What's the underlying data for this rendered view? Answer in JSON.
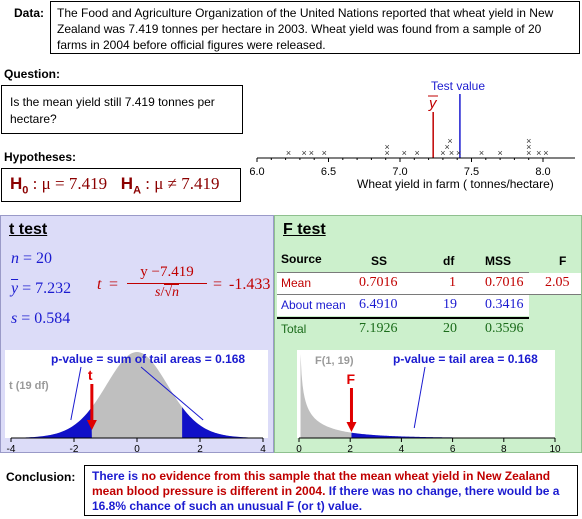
{
  "data_section": {
    "label": "Data:",
    "text": "The Food and Agriculture Organization of the United Nations reported that wheat yield in New Zealand was 7.419 tonnes per hectare in 2003. Wheat yield was found from a sample of 20 farms in 2004 before official figures were released."
  },
  "question_section": {
    "label": "Question:",
    "text": "Is the mean yield still 7.419 tonnes per hectare?"
  },
  "hypotheses_section": {
    "label": "Hypotheses:",
    "h0_sym": "H",
    "h0_sub": "0",
    "h0_rest": ": μ = 7.419",
    "ha_sym": "H",
    "ha_sub": "A",
    "ha_rest": ": μ ≠ 7.419"
  },
  "dotplot": {
    "test_value_label": "Test value",
    "ybar_label": "y",
    "axis_label": "Wheat yield in farm ( tonnes/hectare)",
    "ticks": [
      "6.0",
      "6.5",
      "7.0",
      "7.5",
      "8.0"
    ],
    "x_min": 6.0,
    "x_max": 8.0,
    "test_value": 7.419,
    "sample_mean": 7.232,
    "points": [
      {
        "x": 6.22,
        "level": 0
      },
      {
        "x": 6.33,
        "level": 0
      },
      {
        "x": 6.38,
        "level": 0
      },
      {
        "x": 6.47,
        "level": 0
      },
      {
        "x": 6.91,
        "level": 0
      },
      {
        "x": 6.91,
        "level": 1
      },
      {
        "x": 7.03,
        "level": 0
      },
      {
        "x": 7.12,
        "level": 0
      },
      {
        "x": 7.3,
        "level": 0
      },
      {
        "x": 7.33,
        "level": 1
      },
      {
        "x": 7.35,
        "level": 2
      },
      {
        "x": 7.36,
        "level": 0
      },
      {
        "x": 7.41,
        "level": 0
      },
      {
        "x": 7.57,
        "level": 0
      },
      {
        "x": 7.7,
        "level": 0
      },
      {
        "x": 7.9,
        "level": 0
      },
      {
        "x": 7.9,
        "level": 1
      },
      {
        "x": 7.9,
        "level": 2
      },
      {
        "x": 7.97,
        "level": 0
      },
      {
        "x": 8.02,
        "level": 0
      }
    ]
  },
  "t_test": {
    "title": "t test",
    "n_label": "n",
    "n_value": "= 20",
    "ybar_label": "y",
    "ybar_value": "= 7.232",
    "s_label": "s",
    "s_value": "= 0.584",
    "t_label": "t",
    "eq1": "=",
    "numerator": "y −7.419",
    "den_s": "s",
    "den_n": "n",
    "eq2": "=",
    "t_value": "-1.433",
    "pvalue_text": "p-value = sum of tail areas = 0.168",
    "dist_label": "t (19 df)",
    "marker_label": "t",
    "axis_ticks": [
      "-4",
      "-2",
      "0",
      "2",
      "4"
    ],
    "x_min": -4,
    "x_max": 4,
    "df": 19,
    "t_stat": -1.433
  },
  "f_test": {
    "title": "F test",
    "headers": [
      "Source",
      "SS",
      "df",
      "MSS",
      "F"
    ],
    "rows": [
      {
        "source": "Mean",
        "ss": "0.7016",
        "df": "1",
        "mss": "0.7016",
        "f": "2.05"
      },
      {
        "source": "About mean",
        "ss": "6.4910",
        "df": "19",
        "mss": "0.3416",
        "f": ""
      },
      {
        "source": "Total",
        "ss": "7.1926",
        "df": "20",
        "mss": "0.3596",
        "f": ""
      }
    ],
    "pvalue_text": "p-value = tail area = 0.168",
    "dist_label": "F(1, 19)",
    "marker_label": "F",
    "axis_ticks": [
      "0",
      "2",
      "4",
      "6",
      "8",
      "10"
    ],
    "x_min": 0,
    "x_max": 10,
    "f_stat": 2.05
  },
  "conclusion_section": {
    "label": "Conclusion:",
    "part1": "There is ",
    "part2": "no evidence from this sample that the mean wheat yield in New Zealand mean blood pressure is different in 2004.",
    "part3": " If there was no change, there would be a 16.8% chance of such an unusual F (or t) value."
  },
  "colors": {
    "t_panel_bg": "#dcdcf8",
    "f_panel_bg": "#ccf0cc",
    "blue": "#1b1bd0",
    "red": "#c00000",
    "green": "#1a6b1a",
    "tail_fill": "#1010c8",
    "curve_fill": "#bfbfbf"
  }
}
